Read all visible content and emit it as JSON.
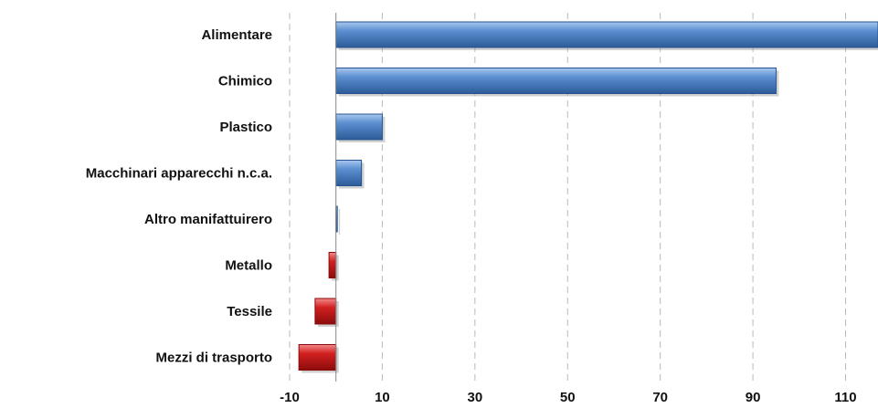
{
  "chart_data": {
    "type": "bar",
    "orientation": "horizontal",
    "categories": [
      "Alimentare",
      "Chimico",
      "Plastico",
      "Macchinari apparecchi n.c.a.",
      "Altro manifattuirero",
      "Metallo",
      "Tessile",
      "Mezzi di trasporto"
    ],
    "values": [
      117,
      95,
      10,
      5.5,
      0.2,
      -1.5,
      -4.5,
      -8
    ],
    "xlim": [
      -10,
      117
    ],
    "x_ticks": [
      -10,
      10,
      30,
      50,
      70,
      90,
      110
    ],
    "x_tick_labels": [
      "-10",
      "10",
      "30",
      "50",
      "70",
      "90",
      "110"
    ],
    "grid": true,
    "colors": {
      "positive": "#4a7fc1",
      "positive_light": "#9cc0ec",
      "positive_dark": "#25538f",
      "negative": "#c81a1a",
      "negative_light": "#f07070",
      "negative_dark": "#8a0a0a"
    }
  }
}
